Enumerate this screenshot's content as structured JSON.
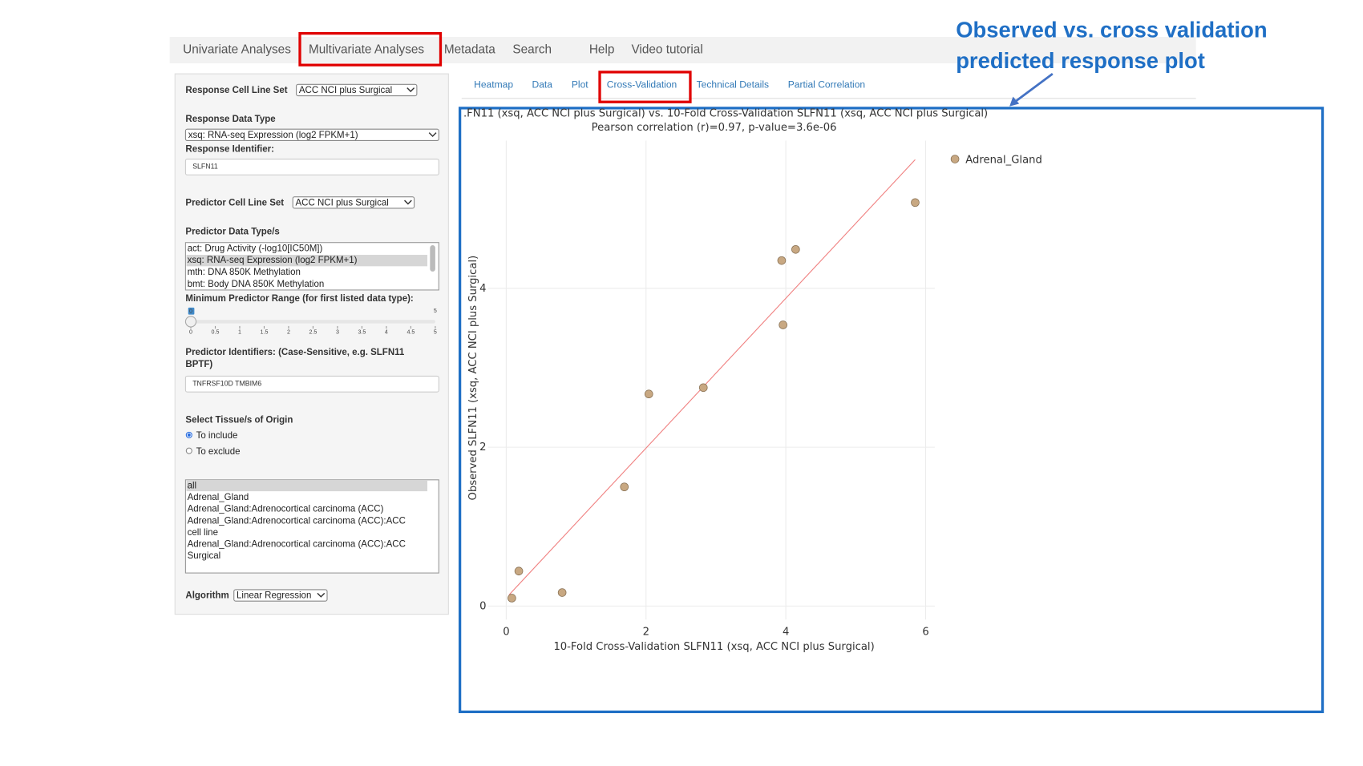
{
  "nav": {
    "items": [
      "Univariate Analyses",
      "Multivariate Analyses",
      "Metadata",
      "Search",
      "Help",
      "Video tutorial"
    ]
  },
  "tabs": [
    "Heatmap",
    "Data",
    "Plot",
    "Cross-Validation",
    "Technical Details",
    "Partial Correlation"
  ],
  "annotation": [
    "Observed vs. cross validation",
    "predicted response plot"
  ],
  "sidebar": {
    "response_cell_line_set": {
      "label": "Response Cell Line Set",
      "value": "ACC NCI plus Surgical"
    },
    "response_data_type": {
      "label": "Response Data Type",
      "value": "xsq: RNA-seq Expression (log2 FPKM+1)"
    },
    "response_identifier": {
      "label": "Response Identifier:",
      "value": "SLFN11"
    },
    "predictor_cell_line_set": {
      "label": "Predictor Cell Line Set",
      "value": "ACC NCI plus Surgical"
    },
    "predictor_data_types": {
      "label": "Predictor Data Type/s",
      "options": [
        "act: Drug Activity (-log10[IC50M])",
        "xsq: RNA-seq Expression (log2 FPKM+1)",
        "mth: DNA 850K Methylation",
        "bmt: Body DNA 850K Methylation"
      ]
    },
    "min_range": {
      "label": "Minimum Predictor Range (for first listed data type):",
      "value": 0,
      "max": 5,
      "ticks": [
        0,
        0.5,
        1,
        1.5,
        2,
        2.5,
        3,
        3.5,
        4,
        4.5,
        5
      ]
    },
    "predictor_identifiers": {
      "label": [
        "Predictor Identifiers: (Case-Sensitive, e.g. SLFN11",
        "BPTF)"
      ],
      "value": "TNFRSF10D TMBIM6"
    },
    "tissue": {
      "label": "Select Tissue/s of Origin",
      "radios": [
        "To include",
        "To exclude"
      ],
      "options": [
        "all",
        "Adrenal_Gland",
        "Adrenal_Gland:Adrenocortical carcinoma (ACC)",
        "Adrenal_Gland:Adrenocortical carcinoma (ACC):ACC",
        "cell line",
        "Adrenal_Gland:Adrenocortical carcinoma (ACC):ACC",
        "Surgical"
      ]
    },
    "algorithm": {
      "label": "Algorithm",
      "value": "Linear Regression"
    }
  },
  "chart_data": {
    "type": "scatter",
    "title": ".FN11 (xsq, ACC NCI plus Surgical) vs. 10-Fold Cross-Validation SLFN11 (xsq, ACC NCI plus Surgical)",
    "subtitle": "Pearson correlation (r)=0.97, p-value=3.6e-06",
    "x_label": "10-Fold Cross-Validation SLFN11 (xsq, ACC NCI plus Surgical)",
    "y_label": "Observed SLFN11 (xsq, ACC NCI plus Surgical)",
    "series": [
      {
        "name": "Adrenal_Gland",
        "color": "#c8a882",
        "x": [
          0.08,
          0.18,
          0.8,
          1.69,
          2.04,
          2.82,
          3.94,
          4.14,
          3.96,
          5.85
        ],
        "values": [
          0.1,
          0.44,
          0.17,
          1.5,
          2.67,
          2.75,
          4.35,
          4.49,
          3.54,
          5.08
        ]
      }
    ],
    "fit_line": {
      "color": "#f08080",
      "x": [
        0.04,
        5.85
      ],
      "values": [
        0.14,
        5.62
      ]
    },
    "xlim": [
      -0.26,
      6.13
    ],
    "ylim": [
      -0.17,
      5.86
    ],
    "xticks": [
      0,
      2,
      4,
      6
    ],
    "yticks": [
      0,
      2,
      4
    ],
    "grid": true
  }
}
